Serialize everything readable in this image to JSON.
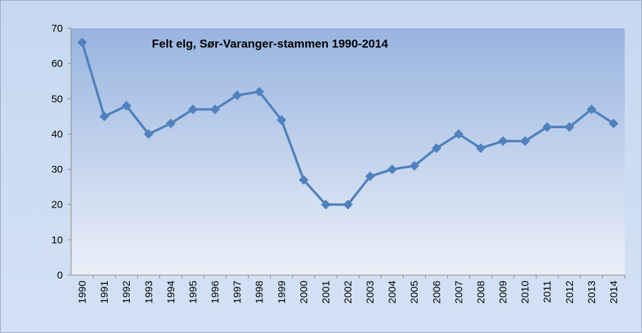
{
  "chart_data": {
    "type": "line",
    "title": "Felt elg, Sør-Varanger-stammen 1990-2014",
    "categories": [
      "1990",
      "1991",
      "1992",
      "1993",
      "1994",
      "1995",
      "1996",
      "1997",
      "1998",
      "1999",
      "2000",
      "2001",
      "2002",
      "2003",
      "2004",
      "2005",
      "2006",
      "2007",
      "2008",
      "2009",
      "2010",
      "2011",
      "2012",
      "2013",
      "2014"
    ],
    "values": [
      66,
      45,
      48,
      40,
      43,
      47,
      47,
      51,
      52,
      44,
      27,
      20,
      20,
      28,
      30,
      31,
      36,
      40,
      36,
      38,
      38,
      42,
      42,
      47,
      43
    ],
    "color": "#4f81bd",
    "ylim": [
      0,
      70
    ],
    "yticks": [
      0,
      10,
      20,
      30,
      40,
      50,
      60,
      70
    ],
    "grid": false
  }
}
